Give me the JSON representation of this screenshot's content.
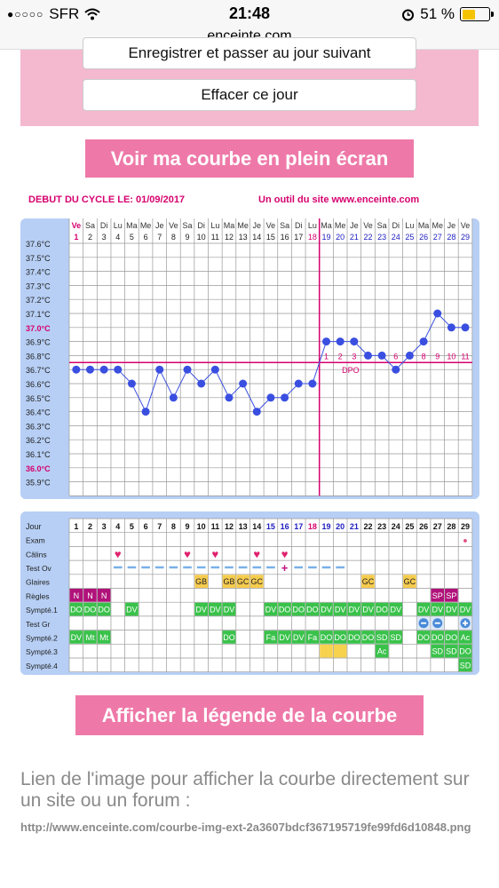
{
  "status_bar": {
    "signal": "●○○○○",
    "carrier": "SFR",
    "time": "21:48",
    "battery": "51 %"
  },
  "url": "enceinte.com",
  "buttons": {
    "save_next": "Enregistrer et passer au jour suivant",
    "clear_day": "Effacer ce jour",
    "fullscreen": "Voir ma courbe en plein écran",
    "legend": "Afficher la légende de la courbe"
  },
  "cycle_start": "DEBUT DU CYCLE LE: 01/09/2017",
  "site_tool": "Un outil du site www.enceinte.com",
  "chart_data": {
    "type": "line",
    "days": [
      "1",
      "2",
      "3",
      "4",
      "5",
      "6",
      "7",
      "8",
      "9",
      "10",
      "11",
      "12",
      "13",
      "14",
      "15",
      "16",
      "17",
      "18",
      "19",
      "20",
      "21",
      "22",
      "23",
      "24",
      "25",
      "26",
      "27",
      "28",
      "29"
    ],
    "weekdays": [
      "Ve",
      "Sa",
      "Di",
      "Lu",
      "Ma",
      "Me",
      "Je",
      "Ve",
      "Sa",
      "Di",
      "Lu",
      "Ma",
      "Me",
      "Je",
      "Ve",
      "Sa",
      "Di",
      "Lu",
      "Ma",
      "Me",
      "Je",
      "Ve",
      "Sa",
      "Di",
      "Lu",
      "Ma",
      "Me",
      "Je",
      "Ve"
    ],
    "y_ticks": [
      "37.6°C",
      "37.5°C",
      "37.4°C",
      "37.3°C",
      "37.2°C",
      "37.1°C",
      "37.0°C",
      "36.9°C",
      "36.8°C",
      "36.7°C",
      "36.6°C",
      "36.5°C",
      "36.4°C",
      "36.3°C",
      "36.2°C",
      "36.1°C",
      "36.0°C",
      "35.9°C"
    ],
    "ylim": [
      35.9,
      37.6
    ],
    "temperatures": [
      36.7,
      36.7,
      36.7,
      36.7,
      36.6,
      36.4,
      36.7,
      36.5,
      36.7,
      36.6,
      36.7,
      36.5,
      36.6,
      36.4,
      36.5,
      36.5,
      36.6,
      36.6,
      36.9,
      36.9,
      36.9,
      36.8,
      36.8,
      36.7,
      36.8,
      36.9,
      37.1,
      37.0,
      37.0
    ],
    "coverline": 36.75,
    "ovulation_day": 18,
    "dpo_labels": [
      "1",
      "2",
      "3",
      "4",
      "5",
      "6",
      "7",
      "8",
      "9",
      "10",
      "11"
    ],
    "dpo_text": "DPO",
    "highlight_colors": {
      "pink": "#d6006e",
      "blue": "#2020c0",
      "point": "#3a4fe0",
      "grid": "#999999"
    }
  },
  "table": {
    "header": "Jour",
    "row_labels": [
      "Exam",
      "Câlins",
      "Test Ov",
      "Glaires",
      "Règles",
      "Sympté.1",
      "Test Gr",
      "Sympté.2",
      "Sympté.3",
      "Sympté.4"
    ],
    "glaires": {
      "9": "GB",
      "11": "GB",
      "12": "GC",
      "13": "GC",
      "21": "GC",
      "24": "GC"
    },
    "regles": {
      "0": "N",
      "1": "N",
      "2": "N",
      "26": "SP",
      "27": "SP"
    },
    "sympt1": {
      "0": "DO",
      "1": "DO",
      "2": "DO",
      "4": "DV",
      "9": "DV",
      "10": "DV",
      "11": "DV",
      "14": "DV",
      "15": "DO",
      "16": "DO",
      "17": "DO",
      "18": "DV",
      "19": "DV",
      "20": "DV",
      "21": "DV",
      "22": "DO",
      "23": "DV",
      "25": "DV",
      "26": "DV",
      "27": "DV",
      "28": "DV"
    },
    "sympt2": {
      "0": "DV",
      "1": "Mt",
      "2": "Mt",
      "11": "DO",
      "14": "Fa",
      "15": "DV",
      "16": "DV",
      "17": "Fa",
      "18": "DO",
      "19": "DO",
      "20": "DO",
      "21": "DO",
      "22": "SD",
      "23": "SD",
      "25": "DO",
      "26": "DO",
      "27": "DO",
      "28": "Ac"
    },
    "sympt3": {
      "22": "Ac",
      "26": "SD",
      "27": "SD",
      "28": "DO"
    },
    "sympt4": {
      "28": "SD"
    }
  },
  "link_text": "Lien de l'image pour afficher la courbe directement sur un site ou un forum :",
  "link_url": "http://www.enceinte.com/courbe-img-ext-2a3607bdcf367195719fe99fd6d10848.png"
}
